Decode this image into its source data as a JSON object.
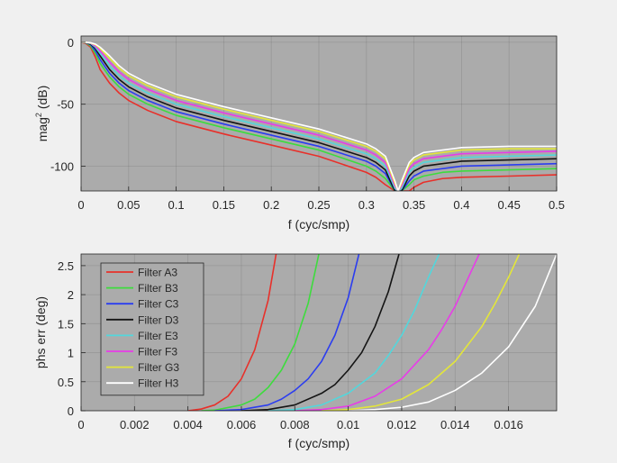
{
  "chart_data": [
    {
      "type": "line",
      "title": "",
      "xlabel": "f (cyc/smp)",
      "ylabel_main": "mag",
      "ylabel_sup": "2",
      "ylabel_tail": " (dB)",
      "xlim": [
        0,
        0.5
      ],
      "ylim": [
        -120,
        5
      ],
      "xticks": [
        0,
        0.05,
        0.1,
        0.15,
        0.2,
        0.25,
        0.3,
        0.35,
        0.4,
        0.45,
        0.5
      ],
      "xtick_labels": [
        "0",
        "0.05",
        "0.1",
        "0.15",
        "0.2",
        "0.25",
        "0.3",
        "0.35",
        "0.4",
        "0.45",
        "0.5"
      ],
      "yticks": [
        0,
        -50,
        -100
      ],
      "ytick_labels": [
        "0",
        "-50",
        "-100"
      ],
      "grid": true,
      "null_frequency": 0.3333,
      "series": [
        {
          "name": "Filter A3",
          "color": "#e8302a",
          "x": [
            0,
            0.005,
            0.01,
            0.015,
            0.02,
            0.03,
            0.04,
            0.05,
            0.07,
            0.1,
            0.15,
            0.2,
            0.25,
            0.3,
            0.31,
            0.32,
            0.33,
            0.3333,
            0.337,
            0.345,
            0.35,
            0.36,
            0.38,
            0.4,
            0.45,
            0.5
          ],
          "y": [
            0,
            -1,
            -4,
            -12,
            -22,
            -33,
            -41,
            -47,
            -55,
            -64,
            -74,
            -83,
            -92,
            -105,
            -109,
            -115,
            -120,
            -120,
            -120,
            -120,
            -117,
            -113,
            -110,
            -109,
            -108,
            -107
          ]
        },
        {
          "name": "Filter B3",
          "color": "#3ddc3d",
          "x": [
            0,
            0.005,
            0.01,
            0.015,
            0.02,
            0.03,
            0.04,
            0.05,
            0.07,
            0.1,
            0.15,
            0.2,
            0.25,
            0.3,
            0.31,
            0.32,
            0.33,
            0.3333,
            0.337,
            0.345,
            0.35,
            0.36,
            0.38,
            0.4,
            0.45,
            0.5
          ],
          "y": [
            0,
            -0.5,
            -3,
            -9,
            -17,
            -28,
            -36,
            -42,
            -50,
            -59,
            -69,
            -78,
            -87,
            -100,
            -104,
            -110,
            -120,
            -120,
            -120,
            -115,
            -111,
            -108,
            -105,
            -104,
            -103,
            -102
          ]
        },
        {
          "name": "Filter C3",
          "color": "#2b3df0",
          "x": [
            0,
            0.005,
            0.01,
            0.015,
            0.02,
            0.03,
            0.04,
            0.05,
            0.07,
            0.1,
            0.15,
            0.2,
            0.25,
            0.3,
            0.31,
            0.32,
            0.33,
            0.3333,
            0.337,
            0.345,
            0.35,
            0.36,
            0.38,
            0.4,
            0.45,
            0.5
          ],
          "y": [
            0,
            -0.4,
            -2,
            -7,
            -14,
            -25,
            -33,
            -39,
            -47,
            -56,
            -66,
            -75,
            -84,
            -96,
            -100,
            -106,
            -120,
            -120,
            -120,
            -112,
            -108,
            -104,
            -102,
            -100,
            -99,
            -98
          ]
        },
        {
          "name": "Filter D3",
          "color": "#141414",
          "x": [
            0,
            0.005,
            0.01,
            0.015,
            0.02,
            0.03,
            0.04,
            0.05,
            0.07,
            0.1,
            0.15,
            0.2,
            0.25,
            0.3,
            0.31,
            0.32,
            0.33,
            0.3333,
            0.337,
            0.345,
            0.35,
            0.36,
            0.38,
            0.4,
            0.45,
            0.5
          ],
          "y": [
            0,
            -0.3,
            -1.5,
            -5,
            -11,
            -22,
            -30,
            -36,
            -44,
            -53,
            -63,
            -72,
            -81,
            -93,
            -97,
            -103,
            -120,
            -120,
            -120,
            -108,
            -104,
            -100,
            -98,
            -96,
            -95,
            -94
          ]
        },
        {
          "name": "Filter E3",
          "color": "#52d7dc",
          "x": [
            0,
            0.005,
            0.01,
            0.015,
            0.02,
            0.03,
            0.04,
            0.05,
            0.07,
            0.1,
            0.15,
            0.2,
            0.25,
            0.3,
            0.31,
            0.32,
            0.33,
            0.3333,
            0.337,
            0.345,
            0.35,
            0.36,
            0.38,
            0.4,
            0.45,
            0.5
          ],
          "y": [
            0,
            -0.2,
            -1,
            -4,
            -9,
            -19,
            -27,
            -33,
            -41,
            -50,
            -60,
            -69,
            -78,
            -90,
            -94,
            -100,
            -118,
            -120,
            -118,
            -105,
            -101,
            -97,
            -95,
            -93,
            -92,
            -91
          ]
        },
        {
          "name": "Filter F3",
          "color": "#e83ce8",
          "x": [
            0,
            0.005,
            0.01,
            0.015,
            0.02,
            0.03,
            0.04,
            0.05,
            0.07,
            0.1,
            0.15,
            0.2,
            0.25,
            0.3,
            0.31,
            0.32,
            0.33,
            0.3333,
            0.337,
            0.345,
            0.35,
            0.36,
            0.38,
            0.4,
            0.45,
            0.5
          ],
          "y": [
            0,
            -0.15,
            -0.8,
            -3,
            -7,
            -16,
            -24,
            -30,
            -38,
            -47,
            -57,
            -66,
            -75,
            -87,
            -91,
            -97,
            -116,
            -120,
            -116,
            -102,
            -98,
            -94,
            -92,
            -90,
            -89,
            -88
          ]
        },
        {
          "name": "Filter G3",
          "color": "#e3e63a",
          "x": [
            0,
            0.005,
            0.01,
            0.015,
            0.02,
            0.03,
            0.04,
            0.05,
            0.07,
            0.1,
            0.15,
            0.2,
            0.25,
            0.3,
            0.31,
            0.32,
            0.33,
            0.3333,
            0.337,
            0.345,
            0.35,
            0.36,
            0.38,
            0.4,
            0.45,
            0.5
          ],
          "y": [
            0,
            -0.1,
            -0.6,
            -2,
            -5,
            -13,
            -21,
            -27,
            -35,
            -44,
            -54,
            -63,
            -72,
            -84,
            -88,
            -94,
            -114,
            -120,
            -114,
            -99,
            -95,
            -91,
            -89,
            -87,
            -86,
            -86
          ]
        },
        {
          "name": "Filter H3",
          "color": "#ffffff",
          "x": [
            0,
            0.005,
            0.01,
            0.015,
            0.02,
            0.03,
            0.04,
            0.05,
            0.07,
            0.1,
            0.15,
            0.2,
            0.25,
            0.3,
            0.31,
            0.32,
            0.33,
            0.3333,
            0.337,
            0.345,
            0.35,
            0.36,
            0.38,
            0.4,
            0.45,
            0.5
          ],
          "y": [
            0,
            -0.05,
            -0.4,
            -1.5,
            -4,
            -11,
            -19,
            -25,
            -33,
            -42,
            -52,
            -61,
            -70,
            -82,
            -86,
            -92,
            -112,
            -120,
            -112,
            -97,
            -93,
            -89,
            -87,
            -85,
            -84,
            -84
          ]
        }
      ]
    },
    {
      "type": "line",
      "title": "",
      "xlabel": "f (cyc/smp)",
      "ylabel": "phs err (deg)",
      "xlim": [
        0,
        0.0178
      ],
      "ylim": [
        0,
        2.7
      ],
      "xticks": [
        0,
        0.002,
        0.004,
        0.006,
        0.008,
        0.01,
        0.012,
        0.014,
        0.016
      ],
      "xtick_labels": [
        "0",
        "0.002",
        "0.004",
        "0.006",
        "0.008",
        "0.01",
        "0.012",
        "0.014",
        "0.016"
      ],
      "yticks": [
        0,
        0.5,
        1,
        1.5,
        2,
        2.5
      ],
      "ytick_labels": [
        "0",
        "0.5",
        "1",
        "1.5",
        "2",
        "2.5"
      ],
      "grid": true,
      "legend": "top-left",
      "series": [
        {
          "name": "Filter A3",
          "color": "#e8302a",
          "x": [
            0.004,
            0.0045,
            0.005,
            0.0055,
            0.006,
            0.0065,
            0.007,
            0.0073
          ],
          "y": [
            0,
            0.03,
            0.1,
            0.25,
            0.55,
            1.05,
            1.9,
            2.7
          ]
        },
        {
          "name": "Filter B3",
          "color": "#3ddc3d",
          "x": [
            0.0045,
            0.005,
            0.006,
            0.0065,
            0.007,
            0.0075,
            0.008,
            0.0085,
            0.0089
          ],
          "y": [
            0,
            0.01,
            0.1,
            0.2,
            0.4,
            0.7,
            1.15,
            1.85,
            2.7
          ]
        },
        {
          "name": "Filter C3",
          "color": "#2b3df0",
          "x": [
            0.005,
            0.006,
            0.007,
            0.0075,
            0.008,
            0.0085,
            0.009,
            0.0095,
            0.01,
            0.0104
          ],
          "y": [
            0,
            0.02,
            0.1,
            0.2,
            0.35,
            0.55,
            0.85,
            1.3,
            1.95,
            2.7
          ]
        },
        {
          "name": "Filter D3",
          "color": "#141414",
          "x": [
            0.006,
            0.007,
            0.008,
            0.009,
            0.0095,
            0.01,
            0.0105,
            0.011,
            0.0115,
            0.0119
          ],
          "y": [
            0,
            0.02,
            0.1,
            0.3,
            0.45,
            0.7,
            1.0,
            1.45,
            2.05,
            2.7
          ]
        },
        {
          "name": "Filter E3",
          "color": "#52d7dc",
          "x": [
            0.007,
            0.008,
            0.009,
            0.01,
            0.011,
            0.0115,
            0.012,
            0.0125,
            0.013,
            0.0134
          ],
          "y": [
            0,
            0.02,
            0.1,
            0.3,
            0.65,
            0.95,
            1.3,
            1.75,
            2.3,
            2.7
          ]
        },
        {
          "name": "Filter F3",
          "color": "#e83ce8",
          "x": [
            0.008,
            0.009,
            0.01,
            0.011,
            0.012,
            0.013,
            0.0135,
            0.014,
            0.0145,
            0.0149
          ],
          "y": [
            0,
            0.02,
            0.08,
            0.25,
            0.55,
            1.05,
            1.4,
            1.8,
            2.3,
            2.7
          ]
        },
        {
          "name": "Filter G3",
          "color": "#e3e63a",
          "x": [
            0.009,
            0.01,
            0.011,
            0.012,
            0.013,
            0.014,
            0.015,
            0.0155,
            0.016,
            0.0164
          ],
          "y": [
            0,
            0.02,
            0.08,
            0.2,
            0.45,
            0.85,
            1.45,
            1.85,
            2.3,
            2.7
          ]
        },
        {
          "name": "Filter H3",
          "color": "#ffffff",
          "x": [
            0.01,
            0.011,
            0.012,
            0.013,
            0.014,
            0.015,
            0.016,
            0.017,
            0.0178
          ],
          "y": [
            0,
            0.02,
            0.06,
            0.15,
            0.35,
            0.65,
            1.1,
            1.8,
            2.7
          ]
        }
      ]
    }
  ]
}
